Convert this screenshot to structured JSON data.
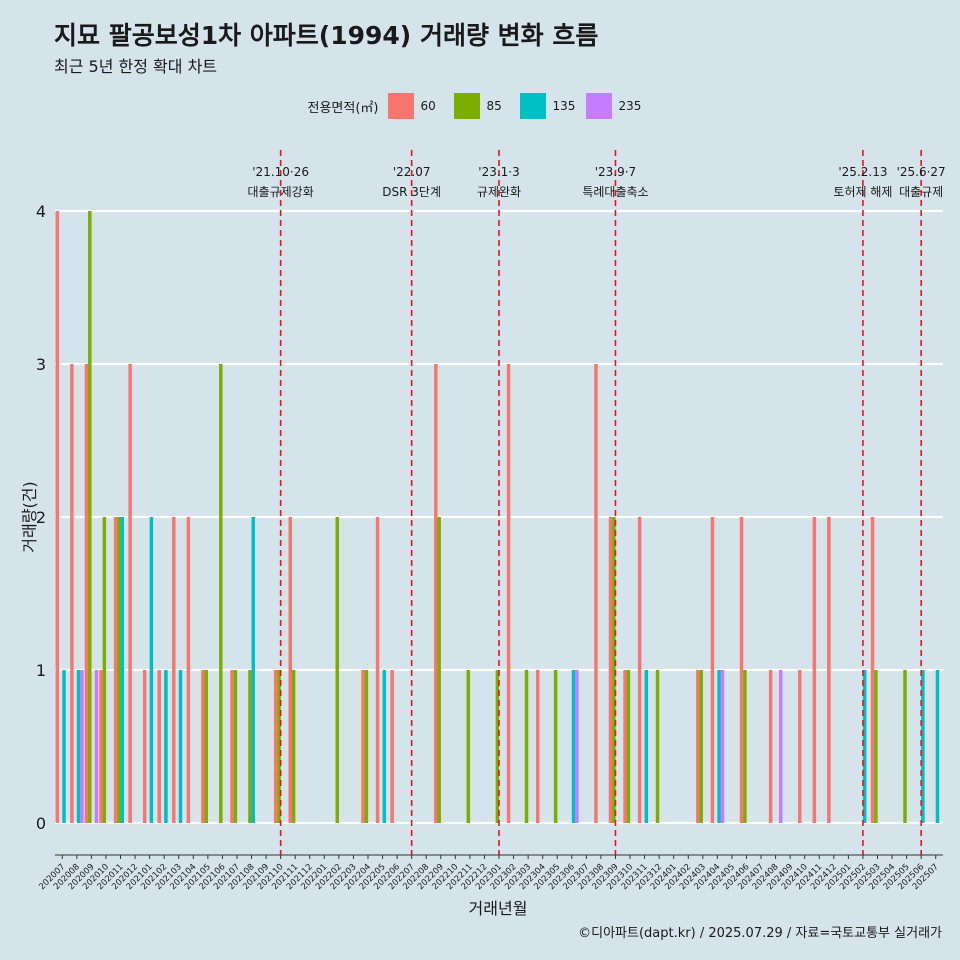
{
  "header": {
    "title": "지묘 팔공보성1차 아파트(1994) 거래량 변화 흐름",
    "subtitle": "최근 5년 한정 확대 차트"
  },
  "legend": {
    "title": "전용면적(㎡)",
    "items": [
      {
        "label": "60",
        "color": "#F8766D"
      },
      {
        "label": "85",
        "color": "#7CAE00"
      },
      {
        "label": "135",
        "color": "#00BFC4"
      },
      {
        "label": "235",
        "color": "#C77CFF"
      }
    ]
  },
  "caption": "©디아파트(dapt.kr) / 2025.07.29 / 자료=국토교통부 실거래가",
  "chart_data": {
    "type": "bar",
    "title": "지묘 팔공보성1차 아파트(1994) 거래량 변화 흐름",
    "subtitle": "최근 5년 한정 확대 차트",
    "xlabel": "거래년월",
    "ylabel": "거래량(건)",
    "ylim": [
      0,
      4
    ],
    "yticks": [
      "0",
      "1",
      "2",
      "3",
      "4"
    ],
    "grid": true,
    "legend_position": "top",
    "categories": [
      "202007",
      "202008",
      "202009",
      "202010",
      "202011",
      "202012",
      "202101",
      "202102",
      "202103",
      "202104",
      "202105",
      "202106",
      "202107",
      "202108",
      "202109",
      "202110",
      "202111",
      "202112",
      "202201",
      "202202",
      "202203",
      "202204",
      "202205",
      "202206",
      "202207",
      "202208",
      "202209",
      "202210",
      "202211",
      "202212",
      "202301",
      "202302",
      "202303",
      "202304",
      "202305",
      "202306",
      "202307",
      "202308",
      "202309",
      "202310",
      "202311",
      "202312",
      "202401",
      "202402",
      "202403",
      "202404",
      "202405",
      "202406",
      "202407",
      "202408",
      "202409",
      "202410",
      "202411",
      "202412",
      "202501",
      "202502",
      "202503",
      "202504",
      "202505",
      "202506",
      "202507"
    ],
    "series": [
      {
        "name": "60",
        "values": [
          4,
          3,
          3,
          1,
          2,
          3,
          1,
          1,
          2,
          2,
          1,
          0,
          1,
          0,
          0,
          1,
          2,
          0,
          0,
          0,
          0,
          1,
          2,
          1,
          0,
          0,
          3,
          0,
          0,
          0,
          0,
          3,
          0,
          1,
          0,
          0,
          0,
          3,
          2,
          1,
          2,
          0,
          0,
          0,
          1,
          2,
          0,
          2,
          0,
          1,
          0,
          1,
          2,
          2,
          0,
          0,
          2,
          0,
          0,
          0,
          0
        ]
      },
      {
        "name": "85",
        "values": [
          0,
          0,
          4,
          2,
          2,
          0,
          0,
          0,
          0,
          0,
          1,
          3,
          1,
          1,
          0,
          1,
          1,
          0,
          0,
          2,
          0,
          1,
          0,
          0,
          0,
          0,
          2,
          0,
          1,
          0,
          1,
          0,
          1,
          0,
          1,
          0,
          0,
          0,
          2,
          1,
          0,
          1,
          0,
          0,
          1,
          0,
          0,
          1,
          0,
          0,
          0,
          0,
          0,
          0,
          0,
          0,
          1,
          0,
          1,
          0,
          0
        ]
      },
      {
        "name": "135",
        "values": [
          1,
          1,
          0,
          0,
          2,
          0,
          2,
          1,
          1,
          0,
          0,
          0,
          0,
          2,
          0,
          0,
          0,
          0,
          0,
          0,
          0,
          0,
          1,
          0,
          0,
          0,
          0,
          0,
          0,
          0,
          0,
          0,
          0,
          0,
          0,
          1,
          0,
          0,
          0,
          0,
          1,
          0,
          0,
          0,
          0,
          1,
          0,
          0,
          0,
          0,
          0,
          0,
          0,
          0,
          0,
          1,
          0,
          0,
          0,
          1,
          1
        ]
      },
      {
        "name": "235",
        "values": [
          0,
          1,
          1,
          0,
          0,
          0,
          0,
          0,
          0,
          0,
          0,
          0,
          0,
          0,
          0,
          0,
          0,
          0,
          0,
          0,
          0,
          0,
          0,
          0,
          0,
          0,
          0,
          0,
          0,
          0,
          0,
          0,
          0,
          0,
          0,
          1,
          0,
          0,
          0,
          0,
          0,
          0,
          0,
          0,
          0,
          1,
          0,
          0,
          0,
          1,
          0,
          0,
          0,
          0,
          0,
          0,
          0,
          0,
          0,
          0,
          0
        ]
      }
    ],
    "annotations": [
      {
        "category": "202110",
        "line1": "'21.10·26",
        "line2": "대출규제강화"
      },
      {
        "category": "202207",
        "line1": "'22.07",
        "line2": "DSR 3단계"
      },
      {
        "category": "202301",
        "line1": "'23.1·3",
        "line2": "규제완화"
      },
      {
        "category": "202309",
        "line1": "'23.9·7",
        "line2": "특례대출축소"
      },
      {
        "category": "202502",
        "line1": "'25.2.13",
        "line2": "토허제 해제"
      },
      {
        "category": "202506",
        "line1": "'25.6·27",
        "line2": "대출규제"
      }
    ]
  }
}
